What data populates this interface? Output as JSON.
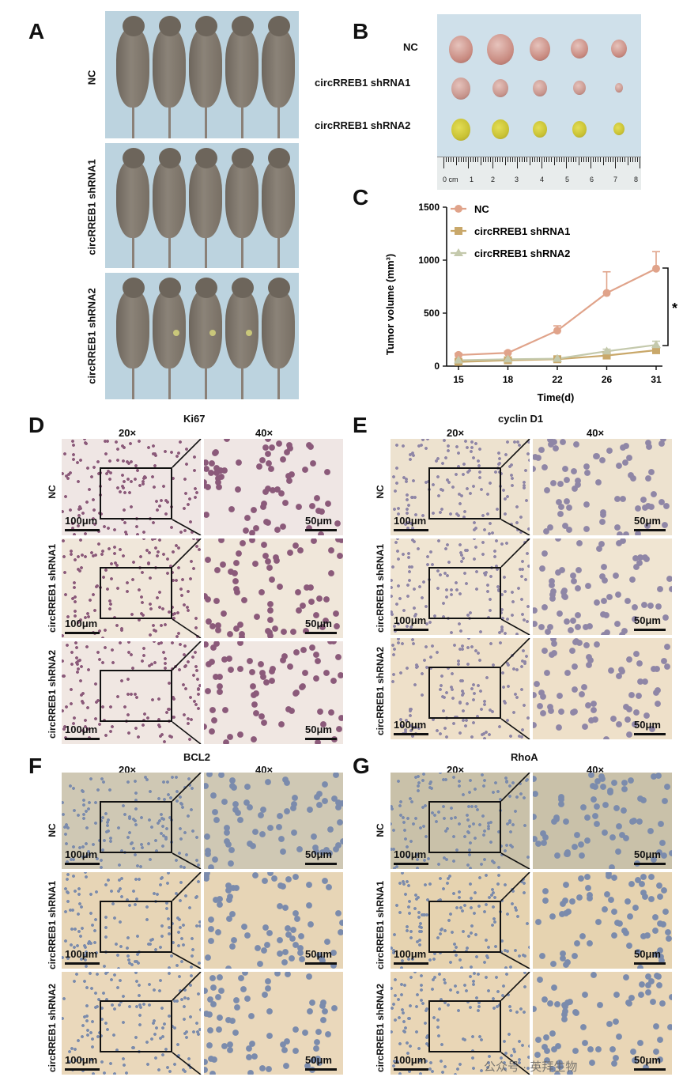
{
  "panels": {
    "A": {
      "letter": "A",
      "groups": [
        "NC",
        "circRREB1 shRNA1",
        "circRREB1 shRNA2"
      ]
    },
    "B": {
      "letter": "B",
      "groups": [
        "NC",
        "circRREB1 shRNA1",
        "circRREB1 shRNA2"
      ],
      "ruler_labels": [
        "0 cm",
        "1",
        "2",
        "3",
        "4",
        "5",
        "6",
        "7",
        "8"
      ]
    },
    "C": {
      "letter": "C"
    },
    "D": {
      "letter": "D",
      "stain": "Ki67"
    },
    "E": {
      "letter": "E",
      "stain": "cyclin D1"
    },
    "F": {
      "letter": "F",
      "stain": "BCL2"
    },
    "G": {
      "letter": "G",
      "stain": "RhoA"
    }
  },
  "ihc": {
    "mag_low": "20×",
    "mag_high": "40×",
    "row_labels": [
      "NC",
      "circRREB1 shRNA1",
      "circRREB1 shRNA2"
    ],
    "scale_low": "100μm",
    "scale_high": "50μm"
  },
  "chart_data": {
    "type": "line",
    "title": "",
    "xlabel": "Time(d)",
    "ylabel": "Tumor volume (mm³)",
    "x": [
      15,
      18,
      22,
      26,
      31
    ],
    "xticks": [
      "15",
      "18",
      "22",
      "26",
      "31"
    ],
    "ylim": [
      0,
      1500
    ],
    "yticks": [
      "0",
      "500",
      "1000",
      "1500"
    ],
    "legend_position": "top-left",
    "significance": "*",
    "series": [
      {
        "name": "NC",
        "values": [
          105,
          125,
          335,
          690,
          920
        ],
        "errors": [
          15,
          15,
          45,
          200,
          160
        ],
        "color": "#e0a38a",
        "marker": "circle"
      },
      {
        "name": "circRREB1 shRNA1",
        "values": [
          40,
          55,
          65,
          100,
          150
        ],
        "errors": [
          8,
          8,
          10,
          15,
          25
        ],
        "color": "#c9a86a",
        "marker": "square"
      },
      {
        "name": "circRREB1 shRNA2",
        "values": [
          55,
          65,
          70,
          140,
          200
        ],
        "errors": [
          8,
          8,
          10,
          20,
          35
        ],
        "color": "#c4c9ac",
        "marker": "triangle"
      }
    ]
  },
  "watermark": "公众号 · 英拜生物"
}
